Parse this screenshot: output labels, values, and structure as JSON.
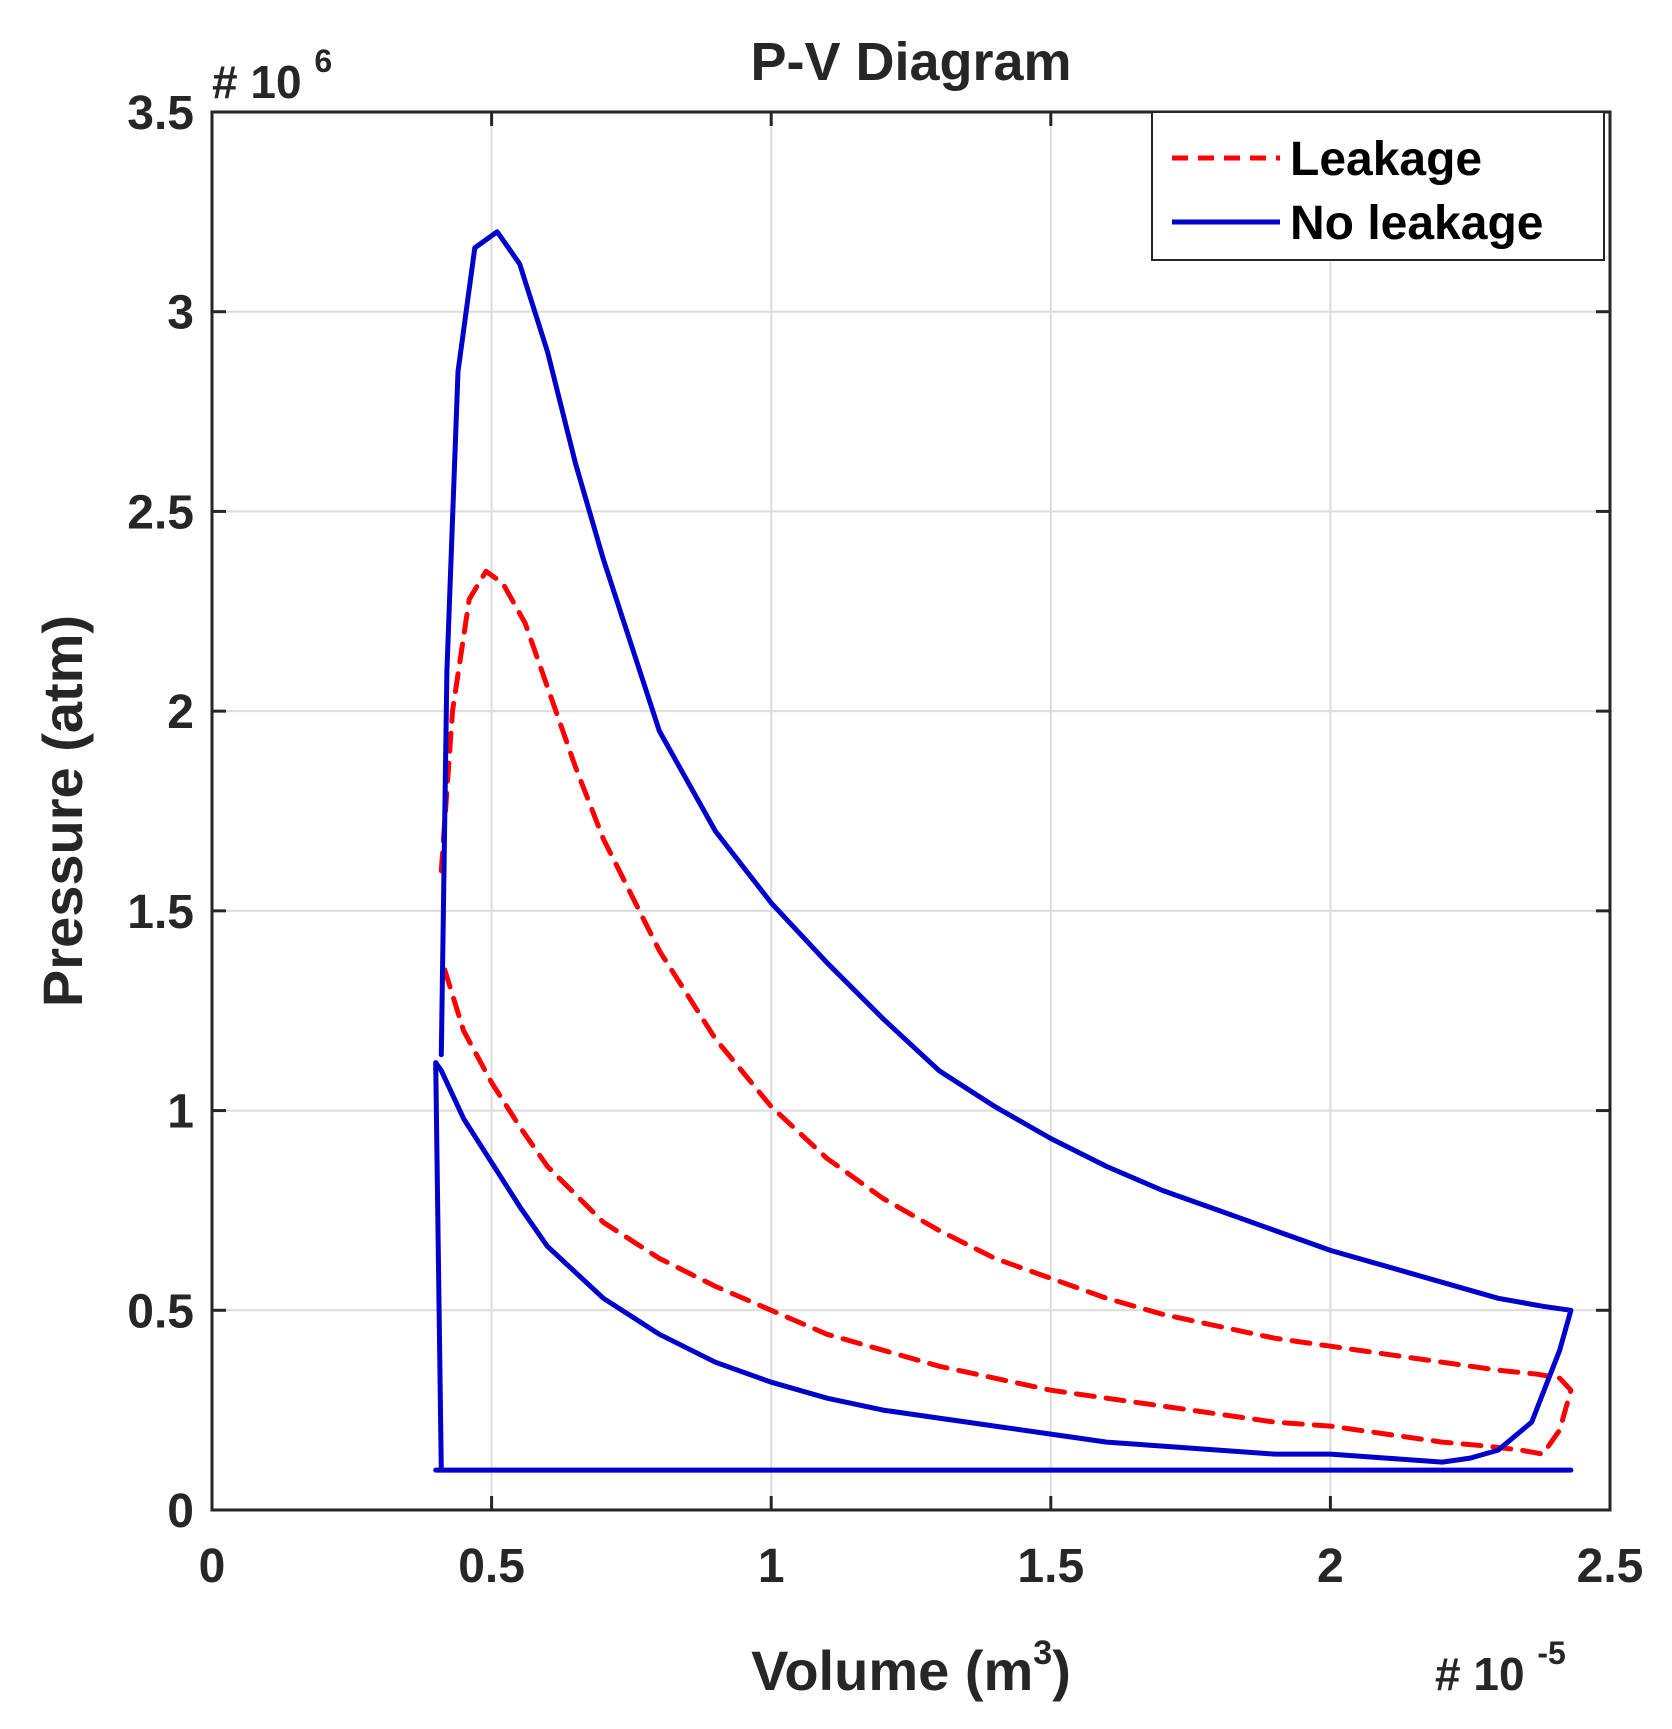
{
  "chart_data": {
    "type": "line",
    "title": "P-V Diagram",
    "xlabel": "Volume (m",
    "xlabel_sup": "3",
    "xlabel_close": ")",
    "ylabel": "Pressure (atm)",
    "x_multiplier": "# 10",
    "x_multiplier_exp": "-5",
    "y_multiplier": "# 10",
    "y_multiplier_exp": "6",
    "xlim": [
      0,
      2.5
    ],
    "ylim": [
      0,
      3.5
    ],
    "xticks": [
      0,
      0.5,
      1,
      1.5,
      2,
      2.5
    ],
    "xtick_labels": [
      "0",
      "0.5",
      "1",
      "1.5",
      "2",
      "2.5"
    ],
    "yticks": [
      0,
      0.5,
      1,
      1.5,
      2,
      2.5,
      3,
      3.5
    ],
    "ytick_labels": [
      "0",
      "0.5",
      "1",
      "1.5",
      "2",
      "2.5",
      "3",
      "3.5"
    ],
    "grid": true,
    "legend_position": "top-right",
    "series": [
      {
        "name": "Leakage",
        "color": "#ff0000",
        "style": "dashed",
        "x": [
          0.41,
          0.43,
          0.46,
          0.49,
          0.52,
          0.56,
          0.6,
          0.65,
          0.7,
          0.8,
          0.9,
          1.0,
          1.1,
          1.2,
          1.3,
          1.4,
          1.5,
          1.6,
          1.7,
          1.8,
          1.9,
          2.0,
          2.1,
          2.2,
          2.3,
          2.37,
          2.41,
          2.43,
          2.41,
          2.38,
          2.34,
          2.28,
          2.2,
          2.1,
          2.0,
          1.9,
          1.8,
          1.7,
          1.6,
          1.5,
          1.4,
          1.3,
          1.2,
          1.1,
          1.0,
          0.9,
          0.8,
          0.7,
          0.6,
          0.55,
          0.5,
          0.45,
          0.41
        ],
        "y": [
          1.6,
          2.0,
          2.28,
          2.35,
          2.32,
          2.22,
          2.06,
          1.86,
          1.68,
          1.4,
          1.18,
          1.01,
          0.88,
          0.78,
          0.7,
          0.63,
          0.58,
          0.53,
          0.49,
          0.46,
          0.43,
          0.41,
          0.39,
          0.37,
          0.35,
          0.34,
          0.33,
          0.3,
          0.2,
          0.14,
          0.15,
          0.16,
          0.17,
          0.19,
          0.21,
          0.22,
          0.24,
          0.26,
          0.28,
          0.3,
          0.33,
          0.36,
          0.4,
          0.44,
          0.5,
          0.56,
          0.63,
          0.72,
          0.86,
          0.96,
          1.07,
          1.2,
          1.38
        ]
      },
      {
        "name": "No leakage",
        "color": "#0000cc",
        "style": "solid",
        "x": [
          0.41,
          0.42,
          0.44,
          0.47,
          0.51,
          0.55,
          0.6,
          0.65,
          0.7,
          0.8,
          0.9,
          1.0,
          1.1,
          1.2,
          1.3,
          1.4,
          1.5,
          1.6,
          1.7,
          1.8,
          1.9,
          2.0,
          2.1,
          2.2,
          2.3,
          2.38,
          2.43,
          2.41,
          2.36,
          2.3,
          2.25,
          2.2,
          2.1,
          2.0,
          1.9,
          1.8,
          1.7,
          1.6,
          1.5,
          1.4,
          1.3,
          1.2,
          1.1,
          1.0,
          0.9,
          0.8,
          0.7,
          0.6,
          0.55,
          0.5,
          0.45,
          0.41,
          0.4,
          0.41,
          2.43,
          2.43,
          0.41,
          0.4
        ],
        "y": [
          1.14,
          2.1,
          2.85,
          3.16,
          3.2,
          3.12,
          2.9,
          2.62,
          2.38,
          1.95,
          1.7,
          1.52,
          1.37,
          1.23,
          1.1,
          1.01,
          0.93,
          0.86,
          0.8,
          0.75,
          0.7,
          0.65,
          0.61,
          0.57,
          0.53,
          0.51,
          0.5,
          0.4,
          0.22,
          0.15,
          0.13,
          0.12,
          0.13,
          0.14,
          0.14,
          0.15,
          0.16,
          0.17,
          0.19,
          0.21,
          0.23,
          0.25,
          0.28,
          0.32,
          0.37,
          0.44,
          0.53,
          0.66,
          0.76,
          0.87,
          0.98,
          1.1,
          1.12,
          0.1,
          0.1,
          0.1,
          0.1,
          0.1
        ]
      }
    ]
  }
}
